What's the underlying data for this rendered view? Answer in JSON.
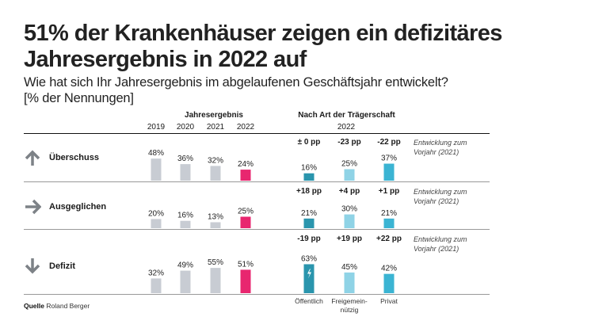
{
  "title": "51% der Krankenhäuser zeigen ein defizitäres Jahresergebnis in 2022 auf",
  "subtitle_line1": "Wie hat sich Ihr Jahresergebnis im abgelaufenen Geschäftsjahr entwickelt?",
  "subtitle_line2": "[% der Nennungen]",
  "source_label": "Quelle",
  "source_value": "Roland Berger",
  "colors": {
    "past_years": "#c8ccd3",
    "year_2022": "#e8266f",
    "oeffentlich": "#2a95ad",
    "freigemeinnuetzig": "#8fd3e6",
    "privat": "#3bb4d3"
  },
  "chart_data": [
    {
      "type": "bar",
      "title": "Jahresergebnis",
      "categories": [
        "2019",
        "2020",
        "2021",
        "2022"
      ],
      "rows": [
        "Überschuss",
        "Ausgeglichen",
        "Defizit"
      ],
      "series": [
        {
          "name": "Überschuss",
          "values": [
            48,
            36,
            32,
            24
          ]
        },
        {
          "name": "Ausgeglichen",
          "values": [
            20,
            16,
            13,
            25
          ]
        },
        {
          "name": "Defizit",
          "values": [
            32,
            49,
            55,
            51
          ]
        }
      ],
      "unit": "%",
      "highlight_category": "2022"
    },
    {
      "type": "bar",
      "title": "Nach Art der Trägerschaft",
      "subtitle": "2022",
      "categories": [
        "Öffentlich",
        "Freigemein-nützig",
        "Privat"
      ],
      "category_lines": [
        [
          "Öffentlich"
        ],
        [
          "Freigemein-",
          "nützig"
        ],
        [
          "Privat"
        ]
      ],
      "rows": [
        "Überschuss",
        "Ausgeglichen",
        "Defizit"
      ],
      "series": [
        {
          "name": "Überschuss",
          "values": [
            16,
            25,
            37
          ],
          "change": [
            "± 0 pp",
            "-23 pp",
            "-22 pp"
          ]
        },
        {
          "name": "Ausgeglichen",
          "values": [
            21,
            30,
            21
          ],
          "change": [
            "+18 pp",
            "+4 pp",
            "+1 pp"
          ]
        },
        {
          "name": "Defizit",
          "values": [
            63,
            45,
            42
          ],
          "change": [
            "-19 pp",
            "+19 pp",
            "+22 pp"
          ]
        }
      ],
      "unit": "%",
      "change_note": "Entwicklung zum Vorjahr (2021)",
      "annotation_icon": "lightning-icon on Öffentlich Defizit bar"
    }
  ],
  "headers": {
    "group1": "Jahresergebnis",
    "group2": "Nach Art der Trägerschaft",
    "group2_year": "2022",
    "years": [
      "2019",
      "2020",
      "2021",
      "2022"
    ]
  },
  "rows": [
    {
      "label": "Überschuss",
      "icon": "arrow-up-icon"
    },
    {
      "label": "Ausgeglichen",
      "icon": "arrow-right-icon"
    },
    {
      "label": "Defizit",
      "icon": "arrow-down-icon"
    }
  ],
  "notes": [
    "Entwicklung zum",
    "Vorjahr (2021)"
  ]
}
